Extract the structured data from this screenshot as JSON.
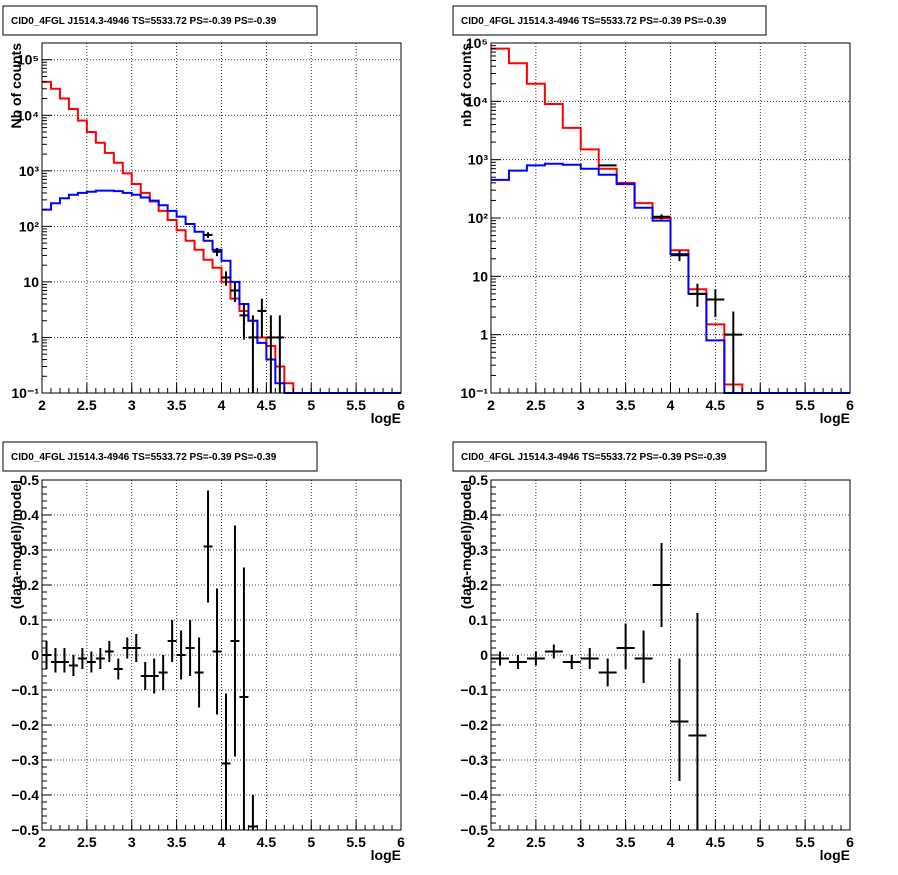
{
  "chart_data": [
    {
      "type": "step-histogram",
      "title": "CID0_4FGL J1514.3-4946 TS=5533.72 PS=-0.39 PS=-0.39",
      "xlabel": "logE",
      "ylabel": "Nb of counts",
      "xlim": [
        2,
        6
      ],
      "ylim": [
        0.1,
        200000
      ],
      "yscale": "log",
      "grid": true,
      "x_ticks": [
        "2",
        "2.5",
        "3",
        "3.5",
        "4",
        "4.5",
        "5",
        "5.5",
        "6"
      ],
      "y_ticks": [
        {
          "value": 0.1,
          "label": "10⁻¹"
        },
        {
          "value": 1,
          "label": "1"
        },
        {
          "value": 10,
          "label": "10"
        },
        {
          "value": 100,
          "label": "10²"
        },
        {
          "value": 1000,
          "label": "10³"
        },
        {
          "value": 10000,
          "label": "10⁴"
        },
        {
          "value": 100000,
          "label": "10⁵"
        }
      ],
      "bin_edges": [
        2.0,
        2.1,
        2.2,
        2.3,
        2.4,
        2.5,
        2.6,
        2.7,
        2.8,
        2.9,
        3.0,
        3.1,
        3.2,
        3.3,
        3.4,
        3.5,
        3.6,
        3.7,
        3.8,
        3.9,
        4.0,
        4.1,
        4.2,
        4.3,
        4.4,
        4.5,
        4.6,
        4.7,
        4.8,
        4.9,
        5.0,
        5.1,
        5.2,
        5.3,
        5.4,
        5.5,
        5.6,
        5.7,
        5.8,
        5.9,
        6.0
      ],
      "series": [
        {
          "name": "",
          "color": "#ff0000",
          "values": [
            40000,
            30000,
            20000,
            13000,
            8000,
            5000,
            3200,
            2100,
            1400,
            900,
            580,
            400,
            280,
            190,
            130,
            85,
            55,
            38,
            25,
            18,
            10,
            5,
            3,
            2,
            1,
            0.7,
            0.3,
            0.15,
            0.1,
            0.1,
            0.1,
            0.1,
            0.1,
            0.1,
            0.1,
            0.1,
            0.1,
            0.1,
            0.1,
            0.1
          ]
        },
        {
          "name": "",
          "color": "#0000ff",
          "values": [
            200,
            260,
            320,
            370,
            400,
            420,
            440,
            440,
            430,
            400,
            370,
            330,
            290,
            240,
            190,
            150,
            110,
            80,
            55,
            38,
            24,
            10,
            4,
            2,
            0.8,
            0.4,
            0.15,
            0.1,
            0.1,
            0.1,
            0.1,
            0.1,
            0.1,
            0.1,
            0.1,
            0.1,
            0.1,
            0.1,
            0.1,
            0.1
          ]
        }
      ],
      "points": [
        {
          "x": 3.85,
          "y": 70
        },
        {
          "x": 3.95,
          "y": 35
        },
        {
          "x": 4.05,
          "y": 12
        },
        {
          "x": 4.15,
          "y": 7
        },
        {
          "x": 4.25,
          "y": 2.5
        },
        {
          "x": 4.35,
          "y": 1,
          "lo": 0.1,
          "hi": 2.5
        },
        {
          "x": 4.45,
          "y": 3,
          "lo": 1,
          "hi": 5
        },
        {
          "x": 4.55,
          "y": 1,
          "lo": 0.1,
          "hi": 2.5
        },
        {
          "x": 4.65,
          "y": 1,
          "lo": 0.1,
          "hi": 2.5
        }
      ]
    },
    {
      "type": "step-histogram",
      "title": "CID0_4FGL J1514.3-4946 TS=5533.72 PS=-0.39 PS=-0.39",
      "xlabel": "logE",
      "ylabel": "nb of counts",
      "xlim": [
        2,
        6
      ],
      "ylim": [
        0.1,
        100000
      ],
      "yscale": "log",
      "grid": true,
      "x_ticks": [
        "2",
        "2.5",
        "3",
        "3.5",
        "4",
        "4.5",
        "5",
        "5.5",
        "6"
      ],
      "y_ticks": [
        {
          "value": 0.1,
          "label": "10⁻¹"
        },
        {
          "value": 1,
          "label": "1"
        },
        {
          "value": 10,
          "label": "10"
        },
        {
          "value": 100,
          "label": "10²"
        },
        {
          "value": 1000,
          "label": "10³"
        },
        {
          "value": 10000,
          "label": "10⁴"
        },
        {
          "value": 100000,
          "label": "10⁵"
        }
      ],
      "bin_edges": [
        2.0,
        2.2,
        2.4,
        2.6,
        2.8,
        3.0,
        3.2,
        3.4,
        3.6,
        3.8,
        4.0,
        4.2,
        4.4,
        4.6,
        4.8,
        5.0,
        5.2,
        5.4,
        5.6,
        5.8,
        6.0
      ],
      "series": [
        {
          "name": "",
          "color": "#ff0000",
          "values": [
            80000,
            45000,
            20000,
            9000,
            3500,
            1500,
            700,
            400,
            180,
            100,
            28,
            6,
            1.5,
            0.14,
            0.1,
            0.1,
            0.1,
            0.1,
            0.1,
            0.1
          ]
        },
        {
          "name": "",
          "color": "#0000ff",
          "values": [
            450,
            650,
            800,
            850,
            820,
            700,
            550,
            380,
            150,
            90,
            24,
            5,
            0.8,
            0.1,
            0.1,
            0.1,
            0.1,
            0.1,
            0.1,
            0.1
          ]
        }
      ],
      "points": [
        {
          "x": 3.3,
          "y": 800
        },
        {
          "x": 3.9,
          "y": 105
        },
        {
          "x": 4.1,
          "y": 23
        },
        {
          "x": 4.3,
          "y": 5,
          "lo": 3,
          "hi": 7.5
        },
        {
          "x": 4.5,
          "y": 4,
          "lo": 2,
          "hi": 6
        },
        {
          "x": 4.7,
          "y": 1,
          "lo": 0.1,
          "hi": 2.5
        }
      ]
    },
    {
      "type": "scatter-errorbars",
      "title": "CID0_4FGL J1514.3-4946 TS=5533.72 PS=-0.39 PS=-0.39",
      "xlabel": "logE",
      "ylabel": "(data-model)/model",
      "xlim": [
        2,
        6
      ],
      "ylim": [
        -0.5,
        0.5
      ],
      "yscale": "linear",
      "grid": true,
      "x_ticks": [
        "2",
        "2.5",
        "3",
        "3.5",
        "4",
        "4.5",
        "5",
        "5.5",
        "6"
      ],
      "y_ticks": [
        {
          "value": -0.5,
          "label": "−0.5"
        },
        {
          "value": -0.4,
          "label": "−0.4"
        },
        {
          "value": -0.3,
          "label": "−0.3"
        },
        {
          "value": -0.2,
          "label": "−0.2"
        },
        {
          "value": -0.1,
          "label": "−0.1"
        },
        {
          "value": 0,
          "label": "0"
        },
        {
          "value": 0.1,
          "label": "0.1"
        },
        {
          "value": 0.2,
          "label": "0.2"
        },
        {
          "value": 0.3,
          "label": "0.3"
        },
        {
          "value": 0.4,
          "label": "0.4"
        },
        {
          "value": 0.5,
          "label": "0.5"
        }
      ],
      "xerr": 0.05,
      "points": [
        {
          "x": 2.05,
          "y": 0.0,
          "lo": -0.04,
          "hi": 0.04
        },
        {
          "x": 2.15,
          "y": -0.02,
          "lo": -0.05,
          "hi": 0.02
        },
        {
          "x": 2.25,
          "y": -0.02,
          "lo": -0.05,
          "hi": 0.02
        },
        {
          "x": 2.35,
          "y": -0.03,
          "lo": -0.06,
          "hi": 0.0
        },
        {
          "x": 2.45,
          "y": -0.01,
          "lo": -0.04,
          "hi": 0.02
        },
        {
          "x": 2.55,
          "y": -0.02,
          "lo": -0.05,
          "hi": 0.01
        },
        {
          "x": 2.65,
          "y": -0.01,
          "lo": -0.04,
          "hi": 0.02
        },
        {
          "x": 2.75,
          "y": 0.01,
          "lo": -0.02,
          "hi": 0.04
        },
        {
          "x": 2.85,
          "y": -0.04,
          "lo": -0.07,
          "hi": -0.01
        },
        {
          "x": 2.95,
          "y": 0.02,
          "lo": -0.01,
          "hi": 0.05
        },
        {
          "x": 3.05,
          "y": 0.02,
          "lo": -0.02,
          "hi": 0.06
        },
        {
          "x": 3.15,
          "y": -0.06,
          "lo": -0.1,
          "hi": -0.02
        },
        {
          "x": 3.25,
          "y": -0.06,
          "lo": -0.11,
          "hi": -0.01
        },
        {
          "x": 3.35,
          "y": -0.05,
          "lo": -0.1,
          "hi": 0.0
        },
        {
          "x": 3.45,
          "y": 0.04,
          "lo": -0.02,
          "hi": 0.1
        },
        {
          "x": 3.55,
          "y": 0.0,
          "lo": -0.07,
          "hi": 0.07
        },
        {
          "x": 3.65,
          "y": 0.02,
          "lo": -0.06,
          "hi": 0.1
        },
        {
          "x": 3.75,
          "y": -0.05,
          "lo": -0.15,
          "hi": 0.05
        },
        {
          "x": 3.85,
          "y": 0.31,
          "lo": 0.15,
          "hi": 0.47
        },
        {
          "x": 3.95,
          "y": 0.01,
          "lo": -0.17,
          "hi": 0.19
        },
        {
          "x": 4.05,
          "y": -0.31,
          "lo": -0.5,
          "hi": -0.11
        },
        {
          "x": 4.15,
          "y": 0.04,
          "lo": -0.29,
          "hi": 0.37
        },
        {
          "x": 4.25,
          "y": -0.12,
          "lo": -0.5,
          "hi": 0.25
        },
        {
          "x": 4.35,
          "y": -0.49,
          "lo": -0.5,
          "hi": -0.4
        }
      ]
    },
    {
      "type": "scatter-errorbars",
      "title": "CID0_4FGL J1514.3-4946 TS=5533.72 PS=-0.39 PS=-0.39",
      "xlabel": "logE",
      "ylabel": "(data-model)/model",
      "xlim": [
        2,
        6
      ],
      "ylim": [
        -0.5,
        0.5
      ],
      "yscale": "linear",
      "grid": true,
      "x_ticks": [
        "2",
        "2.5",
        "3",
        "3.5",
        "4",
        "4.5",
        "5",
        "5.5",
        "6"
      ],
      "y_ticks": [
        {
          "value": -0.5,
          "label": "−0.5"
        },
        {
          "value": -0.4,
          "label": "−0.4"
        },
        {
          "value": -0.3,
          "label": "−0.3"
        },
        {
          "value": -0.2,
          "label": "−0.2"
        },
        {
          "value": -0.1,
          "label": "−0.1"
        },
        {
          "value": 0,
          "label": "0"
        },
        {
          "value": 0.1,
          "label": "0.1"
        },
        {
          "value": 0.2,
          "label": "0.2"
        },
        {
          "value": 0.3,
          "label": "0.3"
        },
        {
          "value": 0.4,
          "label": "0.4"
        },
        {
          "value": 0.5,
          "label": "0.5"
        }
      ],
      "xerr": 0.1,
      "points": [
        {
          "x": 2.1,
          "y": -0.01,
          "lo": -0.03,
          "hi": 0.01
        },
        {
          "x": 2.3,
          "y": -0.02,
          "lo": -0.04,
          "hi": 0.0
        },
        {
          "x": 2.5,
          "y": -0.01,
          "lo": -0.03,
          "hi": 0.01
        },
        {
          "x": 2.7,
          "y": 0.01,
          "lo": -0.01,
          "hi": 0.03
        },
        {
          "x": 2.9,
          "y": -0.02,
          "lo": -0.04,
          "hi": 0.0
        },
        {
          "x": 3.1,
          "y": -0.01,
          "lo": -0.04,
          "hi": 0.02
        },
        {
          "x": 3.3,
          "y": -0.05,
          "lo": -0.09,
          "hi": -0.01
        },
        {
          "x": 3.5,
          "y": 0.02,
          "lo": -0.04,
          "hi": 0.09
        },
        {
          "x": 3.7,
          "y": -0.01,
          "lo": -0.08,
          "hi": 0.07
        },
        {
          "x": 3.9,
          "y": 0.2,
          "lo": 0.08,
          "hi": 0.32
        },
        {
          "x": 4.1,
          "y": -0.19,
          "lo": -0.36,
          "hi": -0.01
        },
        {
          "x": 4.3,
          "y": -0.23,
          "lo": -0.5,
          "hi": 0.12
        }
      ]
    }
  ]
}
